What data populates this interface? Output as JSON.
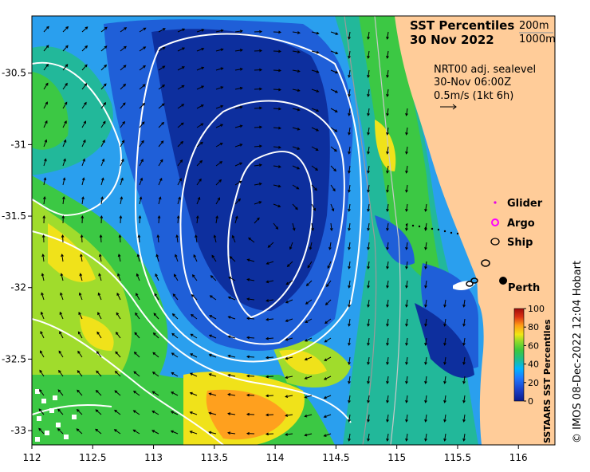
{
  "title": {
    "line1": "SST Percentiles",
    "line2": "30 Nov 2022"
  },
  "depth_contours": {
    "label_200": "200m",
    "label_1000": "1000m"
  },
  "current_info": {
    "line1": "NRT00 adj. sealevel",
    "line2": "30-Nov 06:00Z",
    "line3": "0.5m/s (1kt 6h)"
  },
  "legend": {
    "glider": "Glider",
    "argo": "Argo",
    "ship": "Ship",
    "colors": {
      "glider": "#e600e6",
      "argo": "#ff00ff",
      "ship": "#000000"
    }
  },
  "place_label": "Perth",
  "colorbar": {
    "title": "SSTAARS SST Percentiles",
    "ticks": [
      "100",
      "80",
      "60",
      "40",
      "20",
      "0"
    ],
    "colors": [
      "#0a1a8c",
      "#1a3fc8",
      "#1e78ff",
      "#00b4ff",
      "#1ebe8c",
      "#3cc83c",
      "#96dc28",
      "#f0e614",
      "#ff9b14",
      "#dc3214",
      "#a00a0a"
    ]
  },
  "axes": {
    "x_ticks": [
      "112",
      "112.5",
      "113",
      "113.5",
      "114",
      "114.5",
      "115",
      "115.5",
      "116"
    ],
    "y_ticks": [
      "-30.5",
      "-31",
      "-31.5",
      "-32",
      "-32.5",
      "-33"
    ],
    "x_range": [
      112,
      116.3
    ],
    "y_range": [
      -33.1,
      -30.1
    ]
  },
  "credit": "© IMOS 08-Dec-2022 12:04 Hobart",
  "land_color": "#ffcc99",
  "ocean_palette": {
    "deep_blue": "#0d2f9e",
    "mid_blue": "#1f5fd8",
    "light_blue": "#2a9fee",
    "teal": "#22b89a",
    "green": "#3cc844",
    "yellow_green": "#a0dc2c",
    "yellow": "#f0e21a",
    "orange": "#ffa01e"
  }
}
